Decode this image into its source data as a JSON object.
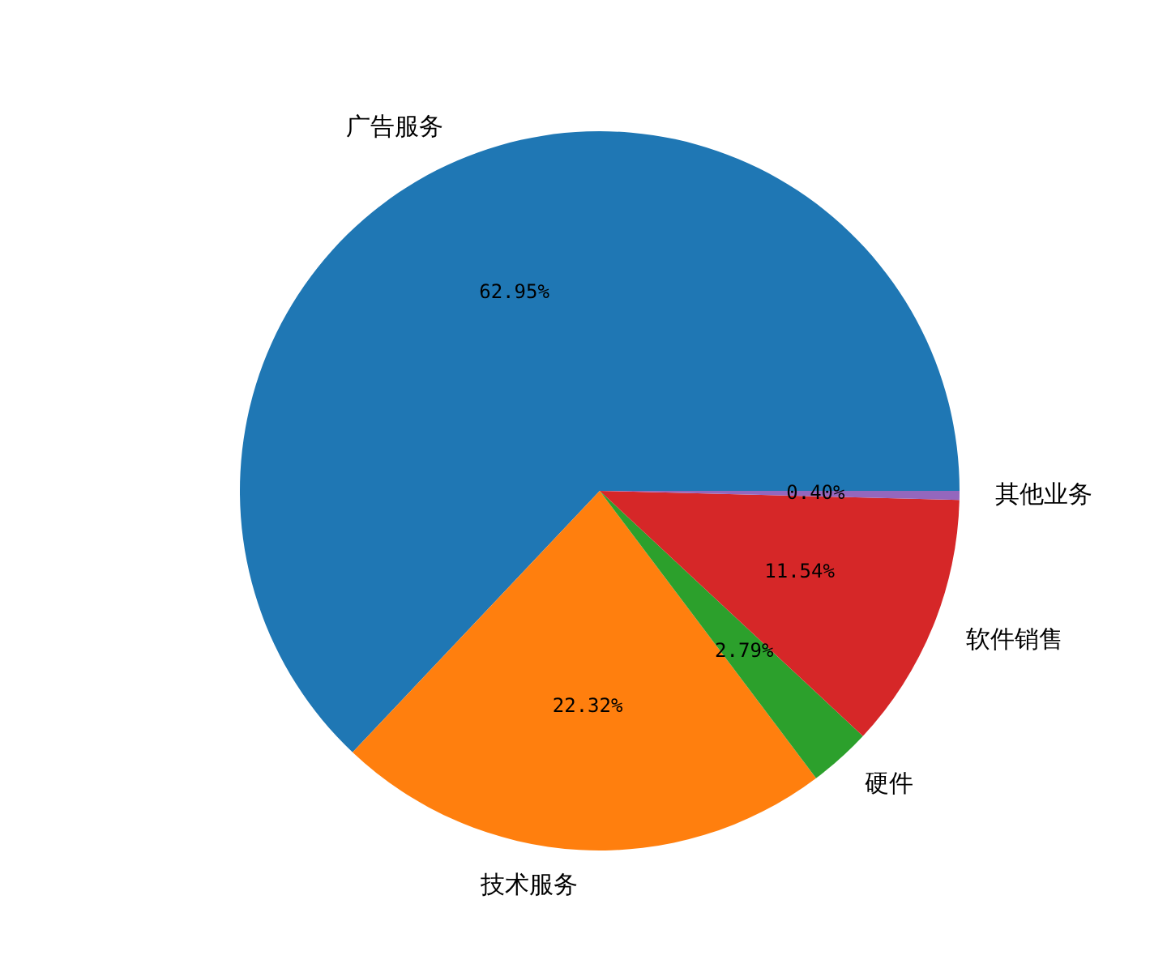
{
  "chart_data": {
    "type": "pie",
    "categories": [
      "广告服务",
      "技术服务",
      "硬件",
      "软件销售",
      "其他业务"
    ],
    "values": [
      62.95,
      22.32,
      2.79,
      11.54,
      0.4
    ],
    "colors": [
      "#1f77b4",
      "#ff7f0e",
      "#2ca02c",
      "#d62728",
      "#9467bd"
    ],
    "value_labels": [
      "62.95%",
      "22.32%",
      "2.79%",
      "11.54%",
      "0.40%"
    ]
  }
}
